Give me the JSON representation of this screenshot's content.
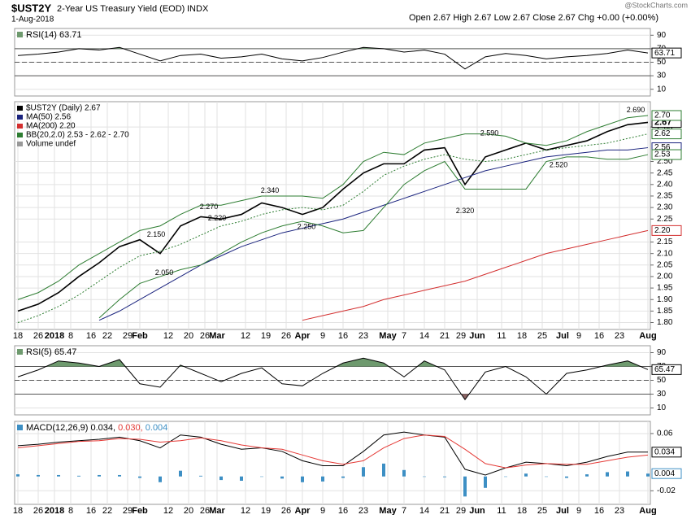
{
  "header": {
    "symbol": "$UST2Y",
    "name": "2-Year US Treasury Yield (EOD)",
    "exchange": "INDX",
    "date": "1-Aug-2018",
    "quote": "Open 2.67 High 2.67 Low 2.67 Close 2.67 Chg +0.00 (+0.00%)",
    "source": "@StockCharts.com"
  },
  "chart_data": [
    {
      "type": "line",
      "title": "RSI(14) 63.71",
      "grid": true,
      "x": [
        0,
        5,
        10,
        15,
        20,
        25,
        30,
        35,
        40,
        45,
        50,
        55,
        60,
        65,
        70,
        75,
        80,
        85,
        90,
        95,
        100,
        105,
        110,
        115,
        120,
        125,
        130,
        135,
        140,
        145,
        150,
        155
      ],
      "xlim": [
        -0.8,
        155.6
      ],
      "ylim": [
        0,
        100
      ],
      "yticks": [
        10,
        30,
        50,
        70,
        90
      ],
      "levels": [
        30,
        50,
        70
      ],
      "fill_colors": [
        "#6e9a6e",
        "#8c6464"
      ],
      "series": [
        {
          "color": "#000000",
          "last_label": true,
          "values": [
            60,
            62,
            65,
            70,
            68,
            72,
            62,
            52,
            60,
            62,
            56,
            58,
            62,
            55,
            52,
            57,
            65,
            72,
            70,
            65,
            68,
            62,
            40,
            58,
            63,
            60,
            55,
            58,
            60,
            63,
            68,
            63.71
          ]
        }
      ]
    },
    {
      "type": "line",
      "grid": true,
      "extra_legend": "Volume undef",
      "x": [
        0,
        5,
        10,
        15,
        20,
        25,
        30,
        35,
        40,
        45,
        50,
        55,
        60,
        65,
        70,
        75,
        80,
        85,
        90,
        95,
        100,
        105,
        110,
        115,
        120,
        125,
        130,
        135,
        140,
        145,
        150,
        155
      ],
      "xlim": [
        -0.8,
        155.6
      ],
      "ylim": [
        1.77,
        2.76
      ],
      "yticks": [
        {
          "value": 1.8,
          "label": "1.80"
        },
        1.85,
        {
          "value": 1.9,
          "label": "1.90"
        },
        1.95,
        {
          "value": 2.0,
          "label": "2.00"
        },
        2.05,
        {
          "value": 2.1,
          "label": "2.10"
        },
        2.15,
        2.25,
        {
          "value": 2.3,
          "label": "2.30"
        },
        2.35,
        {
          "value": 2.4,
          "label": "2.40"
        },
        2.45,
        {
          "value": 2.5,
          "label": "2.50"
        },
        2.65
      ],
      "xticks": [
        {
          "value": 0,
          "label": "18"
        },
        {
          "value": 5,
          "label": "26"
        },
        {
          "value": 9,
          "label": "2018"
        },
        {
          "value": 13,
          "label": "8"
        },
        {
          "value": 18,
          "label": "16"
        },
        {
          "value": 22,
          "label": "22"
        },
        {
          "value": 27,
          "label": "29"
        },
        {
          "value": 30,
          "label": "Feb"
        },
        {
          "value": 37,
          "label": "12"
        },
        {
          "value": 42,
          "label": "20"
        },
        {
          "value": 46,
          "label": "26"
        },
        {
          "value": 49,
          "label": "Mar"
        },
        {
          "value": 56,
          "label": "12"
        },
        {
          "value": 61,
          "label": "19"
        },
        {
          "value": 66,
          "label": "26"
        },
        {
          "value": 70,
          "label": "Apr"
        },
        {
          "value": 75,
          "label": "9"
        },
        {
          "value": 80,
          "label": "16"
        },
        {
          "value": 85,
          "label": "23"
        },
        {
          "value": 91,
          "label": "May"
        },
        {
          "value": 95,
          "label": "7"
        },
        {
          "value": 100,
          "label": "14"
        },
        {
          "value": 105,
          "label": "21"
        },
        {
          "value": 109,
          "label": "29"
        },
        {
          "value": 113,
          "label": "Jun"
        },
        {
          "value": 119,
          "label": "11"
        },
        {
          "value": 124,
          "label": "18"
        },
        {
          "value": 129,
          "label": "25"
        },
        {
          "value": 134,
          "label": "Jul"
        },
        {
          "value": 138,
          "label": "9"
        },
        {
          "value": 143,
          "label": "16"
        },
        {
          "value": 148,
          "label": "23"
        },
        {
          "value": 155,
          "label": "Aug"
        }
      ],
      "annotations": [
        {
          "x": 34,
          "value": 2.15,
          "label": "2.150"
        },
        {
          "x": 36,
          "value": 2.05,
          "label": "2.050"
        },
        {
          "x": 47,
          "value": 2.27,
          "label": "2.270"
        },
        {
          "x": 49,
          "value": 2.22,
          "label": "2.220"
        },
        {
          "x": 62,
          "value": 2.34,
          "label": "2.340"
        },
        {
          "x": 71,
          "value": 2.25,
          "label": "2.250"
        },
        {
          "x": 116,
          "value": 2.59,
          "label": "2.590"
        },
        {
          "x": 110,
          "value": 2.32,
          "label": "2.320"
        },
        {
          "x": 133,
          "value": 2.52,
          "label": "2.520"
        },
        {
          "x": 152,
          "value": 2.69,
          "label": "2.690"
        }
      ],
      "series": [
        {
          "name": "$UST2Y (Daily) 2.67",
          "color": "#000000",
          "bold": true,
          "last_label": true,
          "values": [
            1.85,
            1.88,
            1.93,
            2.0,
            2.06,
            2.13,
            2.16,
            2.1,
            2.22,
            2.26,
            2.25,
            2.27,
            2.32,
            2.3,
            2.27,
            2.3,
            2.38,
            2.45,
            2.49,
            2.49,
            2.55,
            2.56,
            2.4,
            2.52,
            2.55,
            2.58,
            2.55,
            2.57,
            2.59,
            2.63,
            2.66,
            2.67
          ]
        },
        {
          "name": "MA(50) 2.56",
          "color": "#1a237e",
          "last_label": true,
          "values": [
            null,
            null,
            null,
            null,
            1.81,
            1.85,
            1.9,
            1.95,
            2.0,
            2.05,
            2.09,
            2.13,
            2.16,
            2.19,
            2.21,
            2.23,
            2.25,
            2.28,
            2.31,
            2.34,
            2.37,
            2.4,
            2.43,
            2.46,
            2.48,
            2.5,
            2.52,
            2.53,
            2.54,
            2.55,
            2.55,
            2.56
          ]
        },
        {
          "name": "MA(200) 2.20",
          "color": "#d32f2f",
          "values": [
            null,
            null,
            null,
            null,
            null,
            null,
            null,
            null,
            null,
            null,
            null,
            null,
            null,
            null,
            1.81,
            1.83,
            1.85,
            1.87,
            1.9,
            1.92,
            1.94,
            1.96,
            1.98,
            2.01,
            2.04,
            2.07,
            2.1,
            2.12,
            2.14,
            2.16,
            2.18,
            2.2
          ],
          "value_labels": [
            null,
            null,
            null,
            null,
            null,
            null,
            null,
            null,
            null,
            null,
            null,
            null,
            null,
            null,
            null,
            null,
            null,
            null,
            null,
            null,
            null,
            null,
            null,
            null,
            null,
            null,
            null,
            null,
            null,
            null,
            null,
            "2.20"
          ]
        },
        {
          "name": "BB(20,2.0) 2.53 - 2.62 - 2.70",
          "color": "#2e7d32",
          "values": [
            1.9,
            1.93,
            1.98,
            2.05,
            2.1,
            2.15,
            2.2,
            2.22,
            2.27,
            2.31,
            2.31,
            2.33,
            2.35,
            2.35,
            2.35,
            2.34,
            2.4,
            2.5,
            2.54,
            2.53,
            2.58,
            2.6,
            2.62,
            2.62,
            2.61,
            2.58,
            2.57,
            2.59,
            2.63,
            2.66,
            2.69,
            2.7
          ],
          "value_labels": [
            null,
            null,
            null,
            null,
            null,
            null,
            null,
            null,
            null,
            null,
            null,
            null,
            null,
            null,
            null,
            null,
            null,
            null,
            null,
            null,
            null,
            null,
            null,
            null,
            null,
            null,
            null,
            null,
            null,
            null,
            null,
            "2.70"
          ]
        },
        {
          "color": "#2e7d32",
          "dash": true,
          "last_label": true,
          "values": [
            1.8,
            1.83,
            1.87,
            1.92,
            1.98,
            2.04,
            2.09,
            2.11,
            2.14,
            2.18,
            2.22,
            2.24,
            2.27,
            2.29,
            2.3,
            2.29,
            2.31,
            2.37,
            2.44,
            2.48,
            2.51,
            2.53,
            2.51,
            2.5,
            2.51,
            2.53,
            2.55,
            2.56,
            2.57,
            2.58,
            2.6,
            2.62
          ]
        },
        {
          "color": "#2e7d32",
          "last_label": true,
          "values": [
            null,
            null,
            null,
            null,
            1.82,
            1.9,
            1.97,
            2.0,
            2.03,
            2.05,
            2.1,
            2.15,
            2.19,
            2.22,
            2.24,
            2.22,
            2.19,
            2.2,
            2.3,
            2.4,
            2.46,
            2.5,
            2.38,
            2.38,
            2.38,
            2.38,
            2.5,
            2.52,
            2.52,
            2.51,
            2.51,
            2.53
          ]
        }
      ]
    },
    {
      "type": "line",
      "title": "RSI(5) 65.47",
      "grid": true,
      "x": [
        0,
        5,
        10,
        15,
        20,
        25,
        30,
        35,
        40,
        45,
        50,
        55,
        60,
        65,
        70,
        75,
        80,
        85,
        90,
        95,
        100,
        105,
        110,
        115,
        120,
        125,
        130,
        135,
        140,
        145,
        150,
        155
      ],
      "xlim": [
        -0.8,
        155.6
      ],
      "ylim": [
        0,
        100
      ],
      "yticks": [
        10,
        30,
        50,
        70,
        90
      ],
      "levels": [
        30,
        50,
        70
      ],
      "fill_colors": [
        "#6e9a6e",
        "#8c6464"
      ],
      "series": [
        {
          "color": "#000000",
          "last_label": true,
          "values": [
            55,
            65,
            78,
            75,
            70,
            80,
            45,
            40,
            72,
            60,
            48,
            60,
            68,
            45,
            42,
            60,
            75,
            82,
            75,
            55,
            78,
            65,
            22,
            62,
            70,
            55,
            30,
            60,
            65,
            72,
            78,
            65.47
          ]
        }
      ]
    },
    {
      "type": "line",
      "grid": true,
      "legend_inline": true,
      "x": [
        0,
        5,
        10,
        15,
        20,
        25,
        30,
        35,
        40,
        45,
        50,
        55,
        60,
        65,
        70,
        75,
        80,
        85,
        90,
        95,
        100,
        105,
        110,
        115,
        120,
        125,
        130,
        135,
        140,
        145,
        150,
        155
      ],
      "xlim": [
        -0.8,
        155.6
      ],
      "ylim": [
        -0.039,
        0.077
      ],
      "yticks": [
        0.06,
        -0.02
      ],
      "xticks": [
        {
          "value": 0,
          "label": "18"
        },
        {
          "value": 5,
          "label": "26"
        },
        {
          "value": 9,
          "label": "2018"
        },
        {
          "value": 13,
          "label": "8"
        },
        {
          "value": 18,
          "label": "16"
        },
        {
          "value": 22,
          "label": "22"
        },
        {
          "value": 27,
          "label": "29"
        },
        {
          "value": 30,
          "label": "Feb"
        },
        {
          "value": 37,
          "label": "12"
        },
        {
          "value": 42,
          "label": "20"
        },
        {
          "value": 46,
          "label": "26"
        },
        {
          "value": 49,
          "label": "Mar"
        },
        {
          "value": 56,
          "label": "12"
        },
        {
          "value": 61,
          "label": "19"
        },
        {
          "value": 66,
          "label": "26"
        },
        {
          "value": 70,
          "label": "Apr"
        },
        {
          "value": 75,
          "label": "9"
        },
        {
          "value": 80,
          "label": "16"
        },
        {
          "value": 85,
          "label": "23"
        },
        {
          "value": 91,
          "label": "May"
        },
        {
          "value": 95,
          "label": "7"
        },
        {
          "value": 100,
          "label": "14"
        },
        {
          "value": 105,
          "label": "21"
        },
        {
          "value": 109,
          "label": "29"
        },
        {
          "value": 113,
          "label": "Jun"
        },
        {
          "value": 119,
          "label": "11"
        },
        {
          "value": 124,
          "label": "18"
        },
        {
          "value": 129,
          "label": "25"
        },
        {
          "value": 134,
          "label": "Jul"
        },
        {
          "value": 138,
          "label": "9"
        },
        {
          "value": 143,
          "label": "16"
        },
        {
          "value": 148,
          "label": "23"
        },
        {
          "value": 155,
          "label": "Aug"
        }
      ],
      "series": [
        {
          "name": "MACD(12,26,9) 0.034,",
          "color": "#000000",
          "last_label": true,
          "values": [
            0.043,
            0.045,
            0.048,
            0.05,
            0.052,
            0.055,
            0.05,
            0.04,
            0.058,
            0.055,
            0.045,
            0.038,
            0.04,
            0.035,
            0.022,
            0.015,
            0.015,
            0.035,
            0.058,
            0.062,
            0.058,
            0.055,
            0.01,
            0.002,
            0.012,
            0.02,
            0.018,
            0.015,
            0.02,
            0.028,
            0.034,
            0.034
          ]
        },
        {
          "name": "0.030,",
          "color": "#e53935",
          "values": [
            0.04,
            0.043,
            0.046,
            0.049,
            0.05,
            0.053,
            0.052,
            0.048,
            0.05,
            0.054,
            0.05,
            0.044,
            0.04,
            0.038,
            0.03,
            0.022,
            0.017,
            0.022,
            0.04,
            0.053,
            0.058,
            0.056,
            0.038,
            0.018,
            0.012,
            0.016,
            0.018,
            0.017,
            0.017,
            0.022,
            0.027,
            0.03
          ]
        },
        {
          "name": "0.004",
          "color": "#3d8fc4",
          "type": "bar",
          "last_label": true,
          "values": [
            0.003,
            0.002,
            0.002,
            0.001,
            0.002,
            0.002,
            -0.002,
            -0.008,
            0.008,
            0.001,
            -0.005,
            -0.006,
            0,
            -0.003,
            -0.008,
            -0.007,
            -0.002,
            0.013,
            0.018,
            0.009,
            0,
            -0.001,
            -0.028,
            -0.016,
            0,
            0.004,
            0,
            -0.002,
            0.003,
            0.006,
            0.007,
            0.004
          ]
        }
      ]
    }
  ]
}
